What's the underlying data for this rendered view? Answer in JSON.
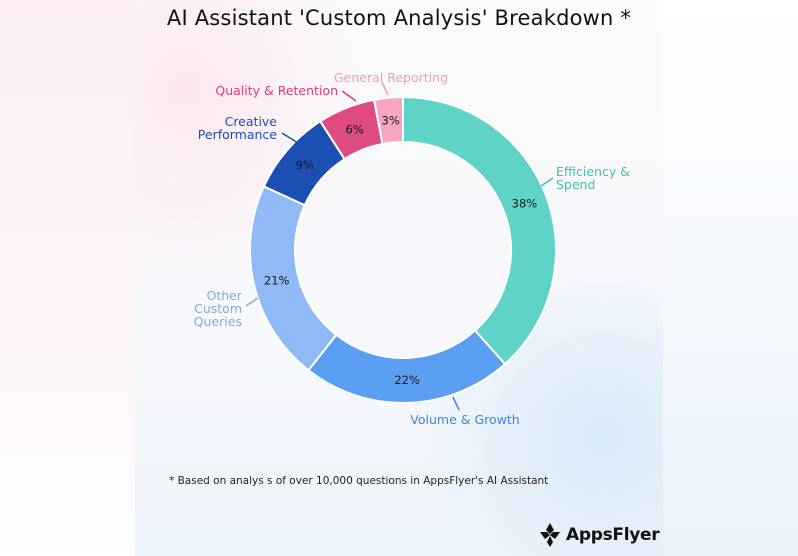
{
  "title": "AI Assistant 'Custom Analysis' Breakdown *",
  "footnote": "* Based on analys s of over 10,000 questions in AppsFlyer's AI Assistant",
  "brand": "AppsFlyer",
  "colors": {
    "efficiency": "#5fd3c8",
    "volume": "#5a9ff2",
    "other": "#8fbaf7",
    "creative": "#1c4fb3",
    "quality": "#de4b82",
    "general": "#f6a6c1"
  },
  "chart_data": {
    "type": "pie",
    "donut": true,
    "title": "AI Assistant 'Custom Analysis' Breakdown *",
    "legend": "none",
    "slices": [
      {
        "label_lines": [
          "Efficiency &",
          "Spend"
        ],
        "value": 38,
        "value_label": "38%",
        "color": "#5fd3c8",
        "label_color": "#3fbfb3"
      },
      {
        "label_lines": [
          "Volume & Growth"
        ],
        "value": 22,
        "value_label": "22%",
        "color": "#5a9ff2",
        "label_color": "#3d87e0"
      },
      {
        "label_lines": [
          "Other",
          "Custom",
          "Queries"
        ],
        "value": 21,
        "value_label": "21%",
        "color": "#8fbaf7",
        "label_color": "#7eaae8"
      },
      {
        "label_lines": [
          "Creative",
          "Performance"
        ],
        "value": 9,
        "value_label": "9%",
        "color": "#1c4fb3",
        "label_color": "#1c4fb3"
      },
      {
        "label_lines": [
          "Quality & Retention"
        ],
        "value": 6,
        "value_label": "6%",
        "color": "#de4b82",
        "label_color": "#d63f77"
      },
      {
        "label_lines": [
          "General Reporting"
        ],
        "value": 3,
        "value_label": "3%",
        "color": "#f6a6c1",
        "label_color": "#f29ab8"
      }
    ]
  }
}
